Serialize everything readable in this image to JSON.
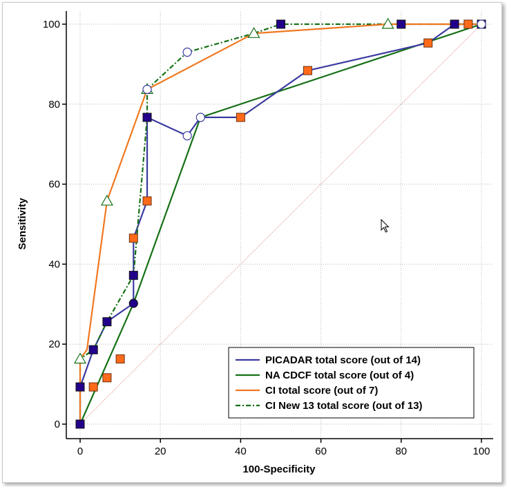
{
  "chart_data": {
    "type": "line",
    "title": "",
    "xlabel": "100-Specificity",
    "ylabel": "Sensitivity",
    "xlim": [
      0,
      100
    ],
    "ylim": [
      0,
      100
    ],
    "xticks": [
      "0",
      "20",
      "40",
      "60",
      "80",
      "100"
    ],
    "yticks": [
      "0",
      "20",
      "40",
      "60",
      "80",
      "100"
    ],
    "grid": true,
    "legend_position": "bottom-right",
    "reference_line": {
      "name": "diagonal",
      "color": "#e08080",
      "points": [
        [
          0,
          0
        ],
        [
          100,
          100
        ]
      ]
    },
    "series": [
      {
        "name": "PICADAR total score (out of 14)",
        "color": "#3a3aa0",
        "dash": "solid",
        "marker": "square",
        "marker_fill": "#22008a",
        "points": [
          [
            0,
            0
          ],
          [
            0,
            9.3
          ],
          [
            3.3,
            18.6
          ],
          [
            6.7,
            25.6
          ],
          [
            13.3,
            30.2
          ],
          [
            13.3,
            37.2
          ],
          [
            13.3,
            46.5
          ],
          [
            16.7,
            55.8
          ],
          [
            16.7,
            76.7
          ],
          [
            26.7,
            72.1
          ],
          [
            30,
            76.7
          ],
          [
            40,
            76.7
          ],
          [
            56.7,
            88.4
          ],
          [
            86.7,
            95.3
          ],
          [
            93.3,
            100
          ],
          [
            100,
            100
          ]
        ]
      },
      {
        "name": "NA CDCF total score (out of 4)",
        "color": "#157015",
        "dash": "solid",
        "marker": "none",
        "marker_fill": "none",
        "points": [
          [
            0,
            0
          ],
          [
            13.3,
            30.2
          ],
          [
            30,
            76.7
          ],
          [
            100,
            100
          ]
        ]
      },
      {
        "name": "CI total score (out of 7)",
        "color": "#f07820",
        "dash": "solid",
        "marker": "square",
        "marker_fill": "#ff6a1a",
        "points": [
          [
            0,
            0
          ],
          [
            0,
            16.3
          ],
          [
            1.7,
            18.6
          ],
          [
            6.7,
            55.8
          ],
          [
            16.7,
            83.7
          ],
          [
            43.3,
            97.7
          ],
          [
            76.7,
            100
          ],
          [
            96.7,
            100
          ],
          [
            100,
            100
          ]
        ]
      },
      {
        "name": "CI New 13 total score (out of 13)",
        "color": "#157015",
        "dash": "dashdot",
        "marker": "triangle",
        "marker_fill": "#ffffff",
        "points": [
          [
            0,
            0
          ],
          [
            0,
            16.3
          ],
          [
            3.3,
            18.6
          ],
          [
            6.7,
            25.6
          ],
          [
            13.3,
            37.2
          ],
          [
            16.7,
            76.7
          ],
          [
            16.7,
            83.7
          ],
          [
            26.7,
            93
          ],
          [
            43.3,
            97.7
          ],
          [
            50,
            100
          ],
          [
            76.7,
            100
          ],
          [
            100,
            100
          ]
        ]
      }
    ],
    "markers": [
      {
        "series": "PICADAR total score (out of 14)",
        "shape": "square",
        "fill": "#22008a",
        "stroke": "#111111",
        "points": [
          [
            0,
            9.3
          ],
          [
            3.3,
            18.6
          ],
          [
            6.7,
            25.6
          ],
          [
            13.3,
            37.2
          ],
          [
            16.7,
            76.7
          ],
          [
            50,
            100
          ],
          [
            80,
            100
          ],
          [
            93.3,
            100
          ],
          [
            100,
            100
          ]
        ]
      },
      {
        "series": "CI total score (out of 7)",
        "shape": "square",
        "fill": "#ff6a1a",
        "stroke": "#6a3010",
        "points": [
          [
            3.3,
            9.3
          ],
          [
            6.7,
            11.6
          ],
          [
            10,
            16.3
          ],
          [
            13.3,
            46.5
          ],
          [
            16.7,
            55.8
          ],
          [
            40,
            76.7
          ],
          [
            56.7,
            88.4
          ],
          [
            86.7,
            95.3
          ],
          [
            96.7,
            100
          ]
        ]
      },
      {
        "series": "CI New 13 total score (out of 13)",
        "shape": "triangle",
        "fill": "#ffffff",
        "stroke": "#157015",
        "points": [
          [
            0,
            16.3
          ],
          [
            6.7,
            55.8
          ],
          [
            16.7,
            83.7
          ],
          [
            43.3,
            97.7
          ],
          [
            76.7,
            100
          ]
        ]
      },
      {
        "series": "open circles",
        "shape": "circle",
        "fill": "#ffffff",
        "stroke": "#3a3aa0",
        "points": [
          [
            16.7,
            83.7
          ],
          [
            26.7,
            93
          ],
          [
            26.7,
            72.1
          ],
          [
            30,
            76.7
          ],
          [
            100,
            100
          ]
        ]
      },
      {
        "series": "filled circle",
        "shape": "circle",
        "fill": "#22008a",
        "stroke": "#111111",
        "points": [
          [
            13.3,
            30.2
          ]
        ]
      },
      {
        "series": "origin",
        "shape": "square",
        "fill": "#22008a",
        "stroke": "#111111",
        "points": [
          [
            0,
            0
          ]
        ]
      }
    ]
  },
  "legend": {
    "items": [
      {
        "label": "PICADAR total score (out of 14)",
        "color": "#3a3aa0",
        "dash": "solid"
      },
      {
        "label": "NA CDCF total score (out of 4)",
        "color": "#157015",
        "dash": "solid"
      },
      {
        "label": "CI total score (out of 7)",
        "color": "#f07820",
        "dash": "solid"
      },
      {
        "label": "CI New 13 total score (out of 13)",
        "color": "#157015",
        "dash": "dashdot"
      }
    ]
  }
}
